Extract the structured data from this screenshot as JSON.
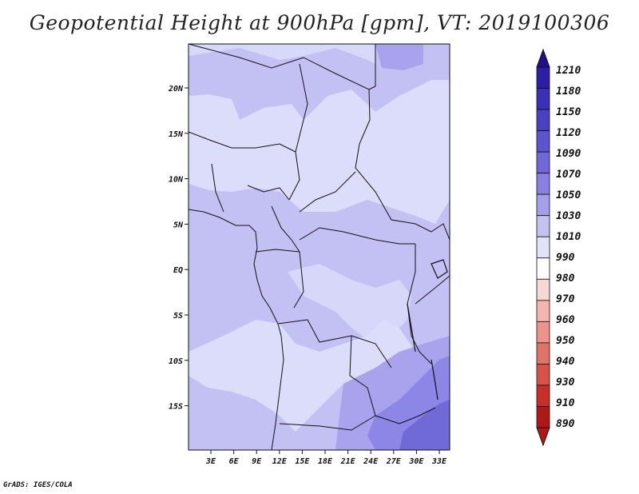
{
  "title": "Geopotential Height at 900hPa [gpm], VT: 2019100306",
  "credit": "GrADS: IGES/COLA",
  "map": {
    "lat_labels": [
      "20N",
      "15N",
      "10N",
      "5N",
      "EQ",
      "5S",
      "10S",
      "15S"
    ],
    "lon_labels": [
      "3E",
      "6E",
      "9E",
      "12E",
      "15E",
      "18E",
      "21E",
      "24E",
      "27E",
      "30E",
      "33E"
    ],
    "extent": {
      "lon_min": 0,
      "lon_max": 35,
      "lat_min": -20,
      "lat_max": 25
    }
  },
  "colorbar": {
    "labels": [
      "1210",
      "1180",
      "1150",
      "1120",
      "1090",
      "1070",
      "1050",
      "1030",
      "1010",
      "990",
      "980",
      "970",
      "960",
      "950",
      "940",
      "930",
      "910",
      "890"
    ],
    "colors": [
      "#1f0f8c",
      "#2b1ea3",
      "#3a2fb5",
      "#4a40c4",
      "#5c54cf",
      "#7068d9",
      "#877fe2",
      "#a59ee9",
      "#c6c2f0",
      "#e3e1f7",
      "#ffffff",
      "#f9d7d3",
      "#f2b6af",
      "#ea948c",
      "#e07369",
      "#d65248",
      "#c6302a",
      "#b01818"
    ]
  },
  "colors": {
    "level_1010": "#dcdcfb",
    "level_1030": "#c3c1f4",
    "level_1050": "#a9a3ee",
    "level_1070": "#8c86e6",
    "level_1090": "#706ad9"
  }
}
